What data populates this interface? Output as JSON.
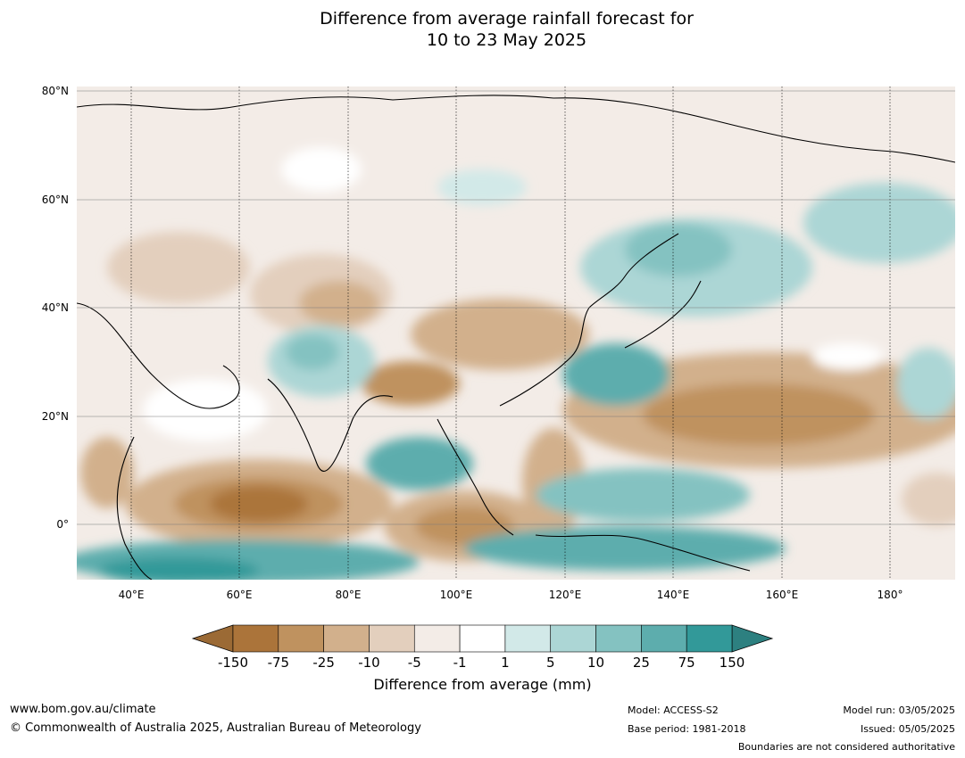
{
  "title": {
    "line1": "Difference from average rainfall forecast for",
    "line2": "10 to 23 May 2025"
  },
  "map": {
    "lat_ticks": [
      "80°N",
      "60°N",
      "40°N",
      "20°N",
      "0°"
    ],
    "lon_ticks": [
      "40°E",
      "60°E",
      "80°E",
      "100°E",
      "120°E",
      "140°E",
      "160°E",
      "180°"
    ],
    "extent": {
      "lon_min": 30,
      "lon_max": 192,
      "lat_min": -10,
      "lat_max": 81
    }
  },
  "colorbar": {
    "title": "Difference from average (mm)",
    "tick_labels": [
      "-150",
      "-75",
      "-25",
      "-10",
      "-5",
      "-1",
      "1",
      "5",
      "10",
      "25",
      "75",
      "150"
    ],
    "colors": [
      "#ab743a",
      "#bf925f",
      "#d2b08c",
      "#e3cfbd",
      "#f3ece7",
      "#ffffff",
      "#d2e9e8",
      "#acd6d5",
      "#84c2c1",
      "#5dadad",
      "#329999"
    ],
    "under_color": "#9b6a35",
    "over_color": "#2d8080"
  },
  "footer": {
    "website": "www.bom.gov.au/climate",
    "copyright": "© Commonwealth of Australia 2025, Australian Bureau of Meteorology",
    "model": "Model: ACCESS-S2",
    "base_period": "Base period: 1981-2018",
    "model_run": "Model run: 03/05/2025",
    "issued": "Issued: 05/05/2025",
    "disclaimer": "Boundaries are not considered authoritative"
  }
}
